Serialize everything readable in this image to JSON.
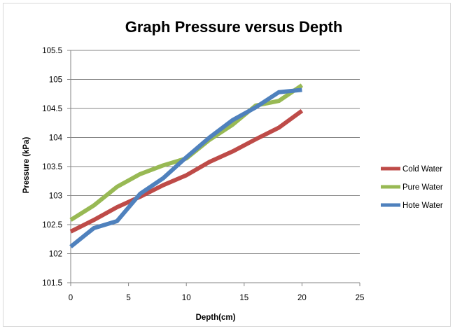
{
  "chart_data": {
    "type": "line",
    "title": "Graph Pressure versus Depth",
    "xlabel": "Depth(cm)",
    "ylabel": "Pressure (kPa)",
    "xlim": [
      0,
      25
    ],
    "ylim": [
      101.5,
      105.5
    ],
    "xticks": [
      0,
      5,
      10,
      15,
      20,
      25
    ],
    "yticks": [
      101.5,
      102,
      102.5,
      103,
      103.5,
      104,
      104.5,
      105,
      105.5
    ],
    "grid": "horizontal",
    "legend_position": "right",
    "series": [
      {
        "name": "Cold Water",
        "color": "#be4b48",
        "points": [
          [
            0,
            102.38
          ],
          [
            2,
            102.58
          ],
          [
            4,
            102.8
          ],
          [
            6,
            102.98
          ],
          [
            8,
            103.18
          ],
          [
            10,
            103.35
          ],
          [
            12,
            103.58
          ],
          [
            14,
            103.76
          ],
          [
            16,
            103.97
          ],
          [
            18,
            104.17
          ],
          [
            20,
            104.46
          ]
        ]
      },
      {
        "name": "Pure Water",
        "color": "#98b954",
        "points": [
          [
            0,
            102.58
          ],
          [
            2,
            102.83
          ],
          [
            4,
            103.15
          ],
          [
            6,
            103.37
          ],
          [
            8,
            103.52
          ],
          [
            10,
            103.64
          ],
          [
            12,
            103.96
          ],
          [
            14,
            104.22
          ],
          [
            16,
            104.55
          ],
          [
            18,
            104.63
          ],
          [
            20,
            104.9
          ]
        ]
      },
      {
        "name": "Hote Water",
        "color": "#4f81bd",
        "points": [
          [
            0,
            102.12
          ],
          [
            2,
            102.44
          ],
          [
            4,
            102.56
          ],
          [
            6,
            103.03
          ],
          [
            8,
            103.3
          ],
          [
            10,
            103.66
          ],
          [
            12,
            104.0
          ],
          [
            14,
            104.3
          ],
          [
            16,
            104.52
          ],
          [
            18,
            104.78
          ],
          [
            20,
            104.82
          ]
        ]
      }
    ]
  }
}
